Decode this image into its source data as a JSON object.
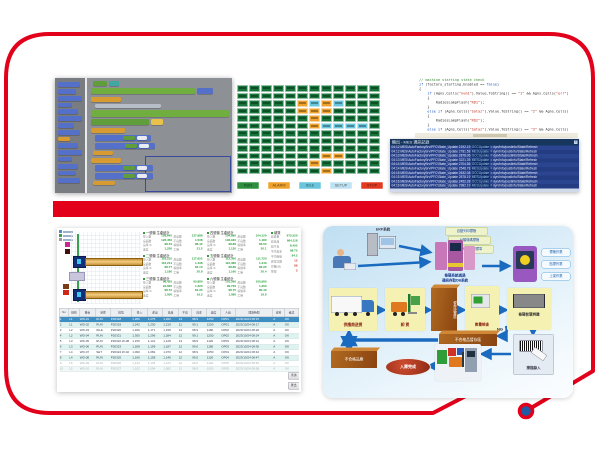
{
  "frame": {
    "red": "#e2001a",
    "dot_fill": "#1e5ca8"
  },
  "status_board": {
    "rows": [
      "gggggggggggg",
      "gggggggggggg",
      "gggggococggg",
      "gggggooogggg",
      "ggggggoggggg",
      "ggggggoccccg",
      "gggggggggggg",
      "gggggggggggg",
      "gggggggggggg",
      "gggggggooggg",
      "ggggggoggggg",
      "gggggggogggg"
    ],
    "colors": {
      "g": "#17743a",
      "o": "#efa22e",
      "c": "#69c6dc"
    },
    "legend": [
      {
        "label": "RUN",
        "color": "#2f8f3f"
      },
      {
        "label": "ALARM",
        "color": "#efa22e"
      },
      {
        "label": "IDLE",
        "color": "#69c6dc"
      },
      {
        "label": "SETUP",
        "color": "#bfe2f2"
      },
      {
        "label": "STOP",
        "color": "#e23a20"
      }
    ]
  },
  "code_editor": {
    "lines": [
      {
        "c": "cmt",
        "t": "// machine starting state check"
      },
      {
        "c": "p",
        "t": "if (factory_starting.Enabled == false)"
      },
      {
        "c": "p",
        "t": "{"
      },
      {
        "c": "p",
        "t": "    if (Agns.Cells(\"num1\").Value.ToString() == \"1\" && Agns.Cells(\"err\")"
      },
      {
        "c": "p",
        "t": "    {"
      },
      {
        "c": "p",
        "t": "        RadiosLampFlash(\"RD1\");"
      },
      {
        "c": "p",
        "t": "    }"
      },
      {
        "c": "p",
        "t": "    else if (Agns.Cells(\"Sataz\").Value.ToString() == \"2\" && Agns.Cells("
      },
      {
        "c": "p",
        "t": "    {"
      },
      {
        "c": "p",
        "t": "        RadiosLampFlash(\"RD2\");"
      },
      {
        "c": "p",
        "t": "    }"
      },
      {
        "c": "p",
        "t": "    else if (Agns.Cells(\"Sataz\").Value.ToString() == \"3\" && Agns.Cells("
      }
    ]
  },
  "log_panel": {
    "title": "輸出 - MES 通訊記錄",
    "close_glyph": "x",
    "rows": [
      {
        "pre": "04:12 MES\\AutoFactorySrv\\PFC\\State_Update  2192.19  ",
        "hl": "OCCUpdate",
        "post": " = dyn/Info/postInfo/State/Refresh"
      },
      {
        "pre": "04:12 MES\\AutoFactorySrv\\PFC\\State_Update  2781.58  ",
        "hl": "MESUpdate",
        "post": " = dyn/Info/postInfo/State/Refresh"
      },
      {
        "pre": "04:13 MES\\AutoFactorySrv\\PFC\\State_Update  2878.06  ",
        "hl": "OCCUpdate",
        "post": " = dyn/Info/postInfo/State/Refresh"
      },
      {
        "pre": "04:13 MES\\AutoFactorySrv\\PFC\\State_Update  3221.39  ",
        "hl": "MESUpdate",
        "post": " = dyn/Info/postInfo/State/Refresh"
      },
      {
        "pre": "04:14 MES\\AutoFactorySrv\\PFC\\State_Update  2704.56  ",
        "hl": "OCCUpdate",
        "post": " = dyn/Info/postInfo/State/Refresh"
      },
      {
        "pre": "04:14 MES\\AutoFactorySrv\\PFC\\State_Update  2548.78  ",
        "hl": "MESUpdate",
        "post": " = dyn/Info/postInfo/State/Refresh"
      },
      {
        "pre": "04:15 MES\\AutoFactorySrv\\PFC\\State_Update  2632.08  ",
        "hl": "OCCUpdate",
        "post": " = dyn/Info/postInfo/State/Refresh"
      },
      {
        "pre": "04:15 MES\\AutoFactorySrv\\PFC\\State_Update  2878.19  ",
        "hl": "MESUpdate",
        "post": " = dyn/Info/postInfo/State/Refresh"
      },
      {
        "pre": "04:16 MES\\AutoFactorySrv\\PFC\\State_Update  2452.28  ",
        "hl": "OCCUpdate",
        "post": " = dyn/Info/postInfo/State/Refresh"
      },
      {
        "pre": "04:16 MES\\AutoFactorySrv\\PFC\\State_Update  2982.19  ",
        "hl": "MESUpdate",
        "post": " = dyn/Info/postInfo/State/Refresh"
      }
    ]
  },
  "dashboard": {
    "panels": [
      {
        "title": "一號機 生產統計",
        "rows": [
          [
            "投入數",
            "128,640",
            "產出數",
            "127,988"
          ],
          [
            "良品數",
            "126,450",
            "不良數",
            "1,538"
          ],
          [
            "良率 %",
            "98.79",
            "稼動率",
            "86.42"
          ],
          [
            "速度",
            "1,250",
            "工時",
            "21.5"
          ]
        ]
      },
      {
        "title": "二號機 生產統計",
        "rows": [
          [
            "投入數",
            "118,210",
            "產出數",
            "117,652"
          ],
          [
            "良品數",
            "116,214",
            "不良數",
            "1,438"
          ],
          [
            "良率 %",
            "98.77",
            "稼動率",
            "84.10"
          ],
          [
            "速度",
            "1,180",
            "工時",
            "20.8"
          ]
        ]
      },
      {
        "title": "三號機 生產統計",
        "rows": [
          [
            "投入數",
            "96,420",
            "產出數",
            "95,880"
          ],
          [
            "良品數",
            "94,660",
            "不良數",
            "1,220"
          ],
          [
            "良率 %",
            "98.72",
            "稼動率",
            "81.35"
          ],
          [
            "速度",
            "1,050",
            "工時",
            "19.2"
          ]
        ]
      },
      {
        "title": "四號機 生產統計",
        "rows": [
          [
            "投入數",
            "104,880",
            "產出數",
            "104,120"
          ],
          [
            "良品數",
            "102,940",
            "不良數",
            "1,180"
          ],
          [
            "良率 %",
            "98.86",
            "稼動率",
            "83.60"
          ],
          [
            "速度",
            "1,120",
            "工時",
            "20.1"
          ]
        ]
      },
      {
        "title": "五號機 生產統計",
        "rows": [
          [
            "投入數",
            "112,300",
            "產出數",
            "111,720"
          ],
          [
            "良品數",
            "110,380",
            "不良數",
            "1,340"
          ],
          [
            "良率 %",
            "98.80",
            "稼動率",
            "82.95"
          ],
          [
            "速度",
            "1,160",
            "工時",
            "20.4"
          ]
        ]
      },
      {
        "title": "六號機 生產統計",
        "rows": [
          [
            "投入數",
            "101,560",
            "產出數",
            "100,980"
          ],
          [
            "良品數",
            "99,720",
            "不良數",
            "1,260"
          ],
          [
            "良率 %",
            "98.75",
            "稼動率",
            "80.40"
          ],
          [
            "速度",
            "1,080",
            "工時",
            "19.6"
          ]
        ]
      }
    ],
    "side": {
      "title": "總覽",
      "rows": [
        {
          "l": "總產量",
          "v": "672,520"
        },
        {
          "l": "總良品",
          "v": "664,118"
        },
        {
          "l": "總不良",
          "v": "8,402"
        },
        {
          "l": "平均良率",
          "v": "98.75"
        },
        {
          "l": "平均稼動",
          "v": "84.2"
        },
        {
          "l": "異常次數",
          "v": "12",
          "c": "r"
        },
        {
          "l": "停機(分)",
          "v": "86",
          "c": "r"
        },
        {
          "l": "警報",
          "v": "3",
          "c": "r"
        }
      ]
    },
    "table": {
      "headers": [
        "No",
        "線別",
        "機台",
        "狀態",
        "批號",
        "投入",
        "產出",
        "良品",
        "不良",
        "良率",
        "速度",
        "人員",
        "開始時間",
        "班別",
        "確認",
        "備註"
      ],
      "rows": [
        [
          "1",
          "L1",
          "WD-01",
          "RUN",
          "P20318",
          "1,286",
          "1,275",
          "1,262",
          "13",
          "98.9",
          "1250",
          "OP01",
          "2023/10/24 08:15",
          "A",
          "OK",
          "-"
        ],
        [
          "2",
          "L1",
          "WD-02",
          "RUN",
          "P20319",
          "1,242",
          "1,230",
          "1,219",
          "11",
          "99.1",
          "1250",
          "OP01",
          "2023/10/24 08:17",
          "A",
          "OK",
          "-"
        ],
        [
          "3",
          "L2",
          "WD-03",
          "IDLE",
          "P20320",
          "1,180",
          "1,171",
          "1,158",
          "13",
          "98.9",
          "1180",
          "OP02",
          "2023/10/24 08:20",
          "A",
          "OK",
          "-"
        ],
        [
          "4",
          "L2",
          "WD-04",
          "RUN",
          "P20321",
          "1,305",
          "1,296",
          "1,284",
          "12",
          "99.1",
          "1250",
          "OP02",
          "2023/10/24 08:24",
          "A",
          "OK",
          "-"
        ],
        [
          "5",
          "L3",
          "WD-05",
          "RUN",
          "P20322 W-08",
          "1,150",
          "1,141",
          "1,128",
          "13",
          "98.9",
          "1120",
          "OP03",
          "2023/10/24 08:31",
          "A",
          "OK",
          "-"
        ],
        [
          "6",
          "L3",
          "WD-06",
          "RUN",
          "P20323",
          "1,208",
          "1,199",
          "1,187",
          "12",
          "99.0",
          "1180",
          "OP03",
          "2023/10/24 08:36",
          "A",
          "OK",
          "-"
        ],
        [
          "7",
          "L4",
          "WD-07",
          "SET",
          "P20324 W-02",
          "1,090",
          "1,082",
          "1,070",
          "12",
          "98.9",
          "1050",
          "OP04",
          "2023/10/24 08:42",
          "A",
          "OK",
          "-"
        ],
        [
          "8",
          "L4",
          "WD-08",
          "RUN",
          "P20325",
          "1,166",
          "1,158",
          "1,146",
          "12",
          "99.0",
          "1120",
          "OP04",
          "2023/10/24 08:47",
          "A",
          "OK",
          "-"
        ],
        [
          "9",
          "L5",
          "WD-09",
          "RUN",
          "P20326",
          "1,144",
          "1,136",
          "1,124",
          "12",
          "99.0",
          "1120",
          "OP05",
          "2023/10/24 08:52",
          "A",
          "OK",
          "-"
        ],
        [
          "10",
          "L5",
          "WD-10",
          "RUN",
          "P20327",
          "1,102",
          "1,094",
          "1,082",
          "12",
          "98.9",
          "1050",
          "OP05",
          "2023/10/24 08:58",
          "A",
          "OK",
          "-"
        ]
      ],
      "buttons": [
        "查詢",
        "匯出",
        "列印",
        "重整",
        "關閉"
      ]
    }
  },
  "flowchart": {
    "erp_label": "ERP系統",
    "chips": [
      "自動列印標籤",
      "分類條碼標籤",
      "作業流程標準"
    ],
    "cluster_caption_1": "條碼系統透過",
    "cluster_caption_2": "通訊存取DB系統",
    "ovals": [
      "標籤作業",
      "貼標作業",
      "上架作業"
    ],
    "truck": "供應商送貨",
    "unload": "卸 貨",
    "staging": "暫存放置區",
    "qty_check": "數量檢查",
    "barcode_id": "條碼智慧辨識",
    "ng": "NG",
    "reject_temp": "不合格品暫存區",
    "reject_store": "不合格品庫",
    "done": "入庫完成",
    "scan_in": "掃描錄入"
  }
}
